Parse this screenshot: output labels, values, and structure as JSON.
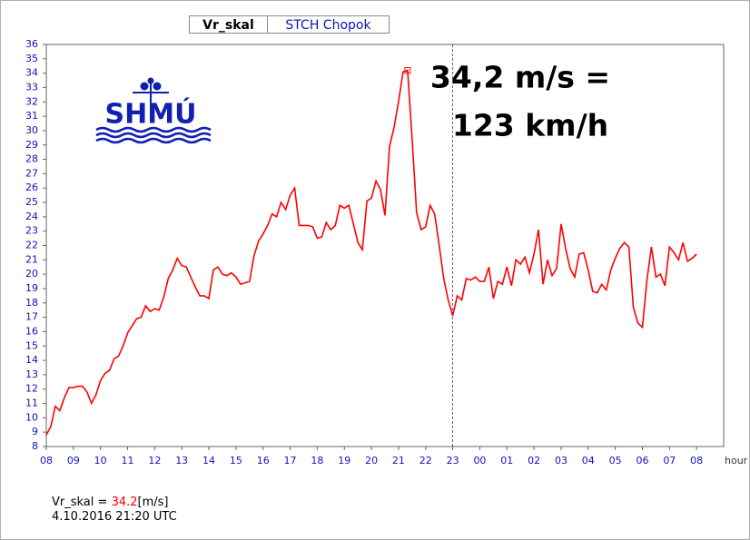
{
  "tabs": [
    "Vr_skal",
    "STCH Chopok"
  ],
  "logo": "SHMÚ",
  "chart_data": {
    "type": "line",
    "color": "#ff0000",
    "grid": false,
    "annotation": [
      "34,2 m/s =",
      "123 km/h"
    ],
    "x_unit": "hour",
    "xlim": [
      0,
      1500
    ],
    "ylim": [
      8,
      36
    ],
    "yticks": [
      8,
      9,
      10,
      11,
      12,
      13,
      14,
      15,
      16,
      17,
      18,
      19,
      20,
      21,
      22,
      23,
      24,
      25,
      26,
      27,
      28,
      29,
      30,
      31,
      32,
      33,
      34,
      35,
      36
    ],
    "xticks": [
      {
        "value": 0,
        "label": "08"
      },
      {
        "value": 60,
        "label": "09"
      },
      {
        "value": 120,
        "label": "10"
      },
      {
        "value": 180,
        "label": "11"
      },
      {
        "value": 240,
        "label": "12"
      },
      {
        "value": 300,
        "label": "13"
      },
      {
        "value": 360,
        "label": "14"
      },
      {
        "value": 420,
        "label": "15"
      },
      {
        "value": 480,
        "label": "16"
      },
      {
        "value": 540,
        "label": "17"
      },
      {
        "value": 600,
        "label": "18"
      },
      {
        "value": 660,
        "label": "19"
      },
      {
        "value": 720,
        "label": "20"
      },
      {
        "value": 780,
        "label": "21"
      },
      {
        "value": 840,
        "label": "22"
      },
      {
        "value": 900,
        "label": "23"
      },
      {
        "value": 960,
        "label": "00"
      },
      {
        "value": 1020,
        "label": "01"
      },
      {
        "value": 1080,
        "label": "02"
      },
      {
        "value": 1140,
        "label": "03"
      },
      {
        "value": 1200,
        "label": "04"
      },
      {
        "value": 1260,
        "label": "05"
      },
      {
        "value": 1320,
        "label": "06"
      },
      {
        "value": 1380,
        "label": "07"
      },
      {
        "value": 1440,
        "label": "08"
      }
    ],
    "reference_line_x": 900,
    "highlight": {
      "x": 800,
      "value": 34.2
    },
    "x": [
      0,
      10,
      20,
      30,
      40,
      50,
      60,
      70,
      80,
      90,
      100,
      110,
      120,
      130,
      140,
      150,
      160,
      170,
      180,
      190,
      200,
      210,
      220,
      230,
      240,
      250,
      260,
      270,
      280,
      290,
      300,
      310,
      320,
      330,
      340,
      350,
      360,
      370,
      380,
      390,
      400,
      410,
      420,
      430,
      440,
      450,
      460,
      470,
      480,
      490,
      500,
      510,
      520,
      530,
      540,
      550,
      560,
      570,
      580,
      590,
      600,
      610,
      620,
      630,
      640,
      650,
      660,
      670,
      680,
      690,
      700,
      710,
      720,
      730,
      740,
      750,
      760,
      770,
      780,
      790,
      800,
      810,
      820,
      830,
      840,
      850,
      860,
      870,
      880,
      890,
      900,
      910,
      920,
      930,
      940,
      950,
      960,
      970,
      980,
      990,
      1000,
      1010,
      1020,
      1030,
      1040,
      1050,
      1060,
      1070,
      1080,
      1090,
      1100,
      1110,
      1120,
      1130,
      1140,
      1150,
      1160,
      1170,
      1180,
      1190,
      1200,
      1210,
      1220,
      1230,
      1240,
      1250,
      1260,
      1270,
      1280,
      1290,
      1300,
      1310,
      1320,
      1330,
      1340,
      1350,
      1360,
      1370,
      1380,
      1390,
      1400,
      1410,
      1420,
      1430,
      1440
    ],
    "values": [
      8.8,
      9.4,
      10.8,
      10.5,
      11.4,
      12.1,
      12.1,
      12.2,
      12.2,
      11.8,
      11.0,
      11.6,
      12.6,
      13.1,
      13.3,
      14.1,
      14.3,
      15.0,
      15.9,
      16.4,
      16.9,
      17.0,
      17.8,
      17.4,
      17.6,
      17.5,
      18.4,
      19.7,
      20.3,
      21.1,
      20.6,
      20.5,
      19.8,
      19.1,
      18.5,
      18.5,
      18.3,
      20.3,
      20.5,
      20.0,
      19.9,
      20.1,
      19.8,
      19.3,
      19.4,
      19.5,
      21.3,
      22.3,
      22.8,
      23.4,
      24.2,
      24.0,
      25.0,
      24.5,
      25.5,
      26.0,
      23.4,
      23.4,
      23.4,
      23.3,
      22.5,
      22.6,
      23.6,
      23.1,
      23.4,
      24.8,
      24.6,
      24.8,
      23.5,
      22.2,
      21.7,
      25.1,
      25.3,
      26.5,
      25.9,
      24.1,
      28.9,
      30.2,
      32.0,
      34.1,
      34.2,
      29.5,
      24.3,
      23.1,
      23.3,
      24.8,
      24.2,
      22.0,
      19.7,
      18.2,
      17.1,
      18.5,
      18.2,
      19.7,
      19.6,
      19.8,
      19.5,
      19.5,
      20.5,
      18.3,
      19.5,
      19.3,
      20.5,
      19.2,
      21.0,
      20.7,
      21.2,
      20.1,
      21.4,
      23.1,
      19.3,
      21.0,
      19.9,
      20.4,
      23.5,
      21.8,
      20.4,
      19.8,
      21.4,
      21.5,
      20.3,
      18.8,
      18.7,
      19.3,
      18.9,
      20.3,
      21.1,
      21.8,
      22.2,
      21.9,
      17.7,
      16.6,
      16.3,
      19.6,
      21.9,
      19.8,
      20.0,
      19.2,
      21.9,
      21.5,
      21.0,
      22.2,
      20.9,
      21.1,
      21.4
    ],
    "readout": {
      "label": "Vr_skal =",
      "value": 34.2,
      "unit": "[m/s]",
      "timestamp": "4.10.2016 21:20 UTC"
    }
  }
}
